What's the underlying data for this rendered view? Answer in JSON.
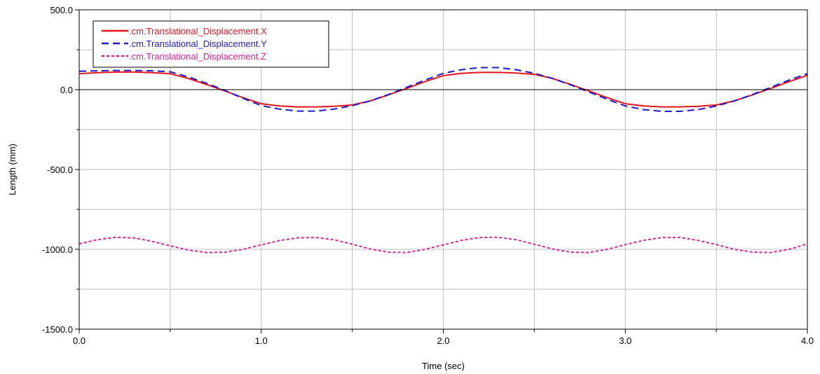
{
  "chart_data": {
    "type": "line",
    "title": "",
    "xlabel": "Time (sec)",
    "ylabel": "Length (mm)",
    "xlim": [
      0,
      4
    ],
    "ylim": [
      -1500,
      500
    ],
    "x_ticks": [
      {
        "value": 0,
        "label": "0.0"
      },
      {
        "value": 1,
        "label": "1.0"
      },
      {
        "value": 2,
        "label": "2.0"
      },
      {
        "value": 3,
        "label": "3.0"
      },
      {
        "value": 4,
        "label": "4.0"
      }
    ],
    "y_ticks": [
      {
        "value": 500,
        "label": "500.0"
      },
      {
        "value": 0,
        "label": "0.0"
      },
      {
        "value": -500,
        "label": "-500.0"
      },
      {
        "value": -1000,
        "label": "-1000.0"
      },
      {
        "value": -1500,
        "label": "-1500.0"
      }
    ],
    "grid": true,
    "grid_step_x": 0.5,
    "grid_step_y": 250,
    "zero_line": true,
    "legend_position": "top-left",
    "x": [
      0.0,
      0.1,
      0.2,
      0.3,
      0.4,
      0.5,
      0.6,
      0.7,
      0.8,
      0.9,
      1.0,
      1.1,
      1.2,
      1.3,
      1.4,
      1.5,
      1.6,
      1.7,
      1.8,
      1.9,
      2.0,
      2.1,
      2.2,
      2.3,
      2.4,
      2.5,
      2.6,
      2.7,
      2.8,
      2.9,
      3.0,
      3.1,
      3.2,
      3.3,
      3.4,
      3.5,
      3.6,
      3.7,
      3.8,
      3.9,
      4.0
    ],
    "series": [
      {
        "name": ".cm.Translational_Displacement.X",
        "color": "#e8141c",
        "dash": "solid",
        "values": [
          100,
          106,
          110,
          110,
          106,
          100,
          70,
          32,
          -8,
          -50,
          -88,
          -102,
          -108,
          -108,
          -104,
          -96,
          -70,
          -32,
          8,
          50,
          88,
          102,
          108,
          108,
          104,
          96,
          70,
          32,
          -8,
          -50,
          -88,
          -102,
          -108,
          -108,
          -104,
          -96,
          -70,
          -32,
          8,
          50,
          90
        ]
      },
      {
        "name": ".cm.Translational_Displacement.Y",
        "color": "#1a1ad8",
        "dash": "dashed",
        "values": [
          115,
          118,
          120,
          120,
          118,
          112,
          80,
          40,
          -5,
          -55,
          -100,
          -122,
          -134,
          -134,
          -122,
          -100,
          -70,
          -30,
          15,
          60,
          102,
          125,
          138,
          138,
          125,
          102,
          70,
          30,
          -15,
          -60,
          -102,
          -125,
          -136,
          -136,
          -125,
          -102,
          -70,
          -30,
          15,
          60,
          100
        ]
      },
      {
        "name": ".cm.Translational_Displacement.Z",
        "color": "#e0209a",
        "dash": "dotted",
        "values": [
          -965,
          -940,
          -925,
          -928,
          -950,
          -978,
          -1005,
          -1020,
          -1018,
          -1000,
          -972,
          -945,
          -928,
          -926,
          -940,
          -968,
          -998,
          -1018,
          -1020,
          -1000,
          -972,
          -944,
          -926,
          -924,
          -940,
          -968,
          -998,
          -1018,
          -1020,
          -1000,
          -970,
          -944,
          -926,
          -926,
          -944,
          -970,
          -1000,
          -1018,
          -1020,
          -1000,
          -966
        ]
      }
    ]
  }
}
